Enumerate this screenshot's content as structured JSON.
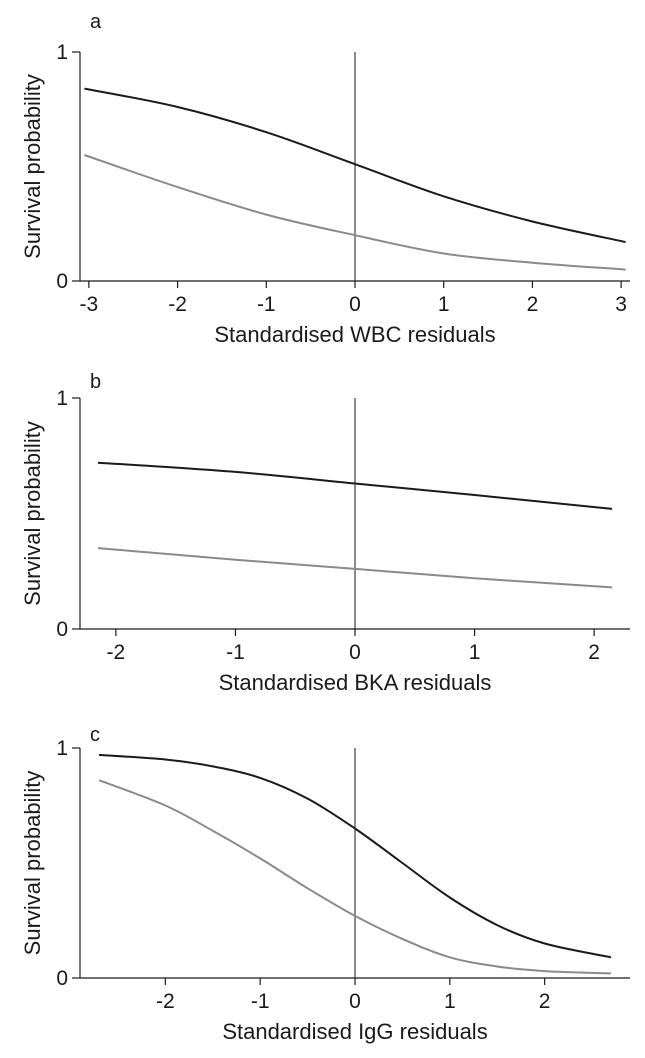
{
  "chart_data": [
    {
      "panel": "a",
      "type": "line",
      "xlabel": "Standardised WBC residuals",
      "ylabel": "Survival probability",
      "xlim": [
        -3.1,
        3.1
      ],
      "ylim": [
        0,
        1
      ],
      "xticks": [
        -3,
        -2,
        -1,
        0,
        1,
        2,
        3
      ],
      "xtick_labels": [
        "-3",
        "-2",
        "-1",
        "0",
        "1",
        "2",
        "3"
      ],
      "yticks": [
        0,
        1
      ],
      "ytick_labels": [
        "0",
        "1"
      ],
      "reference_line_x": 0,
      "grid": false,
      "series": [
        {
          "color": "#1a1a1a",
          "x": [
            -3.05,
            -2,
            -1,
            0,
            1,
            2,
            3.05
          ],
          "y": [
            0.84,
            0.76,
            0.65,
            0.51,
            0.37,
            0.26,
            0.17
          ]
        },
        {
          "color": "#8a8a8a",
          "x": [
            -3.05,
            -2,
            -1,
            0,
            1,
            2,
            3.05
          ],
          "y": [
            0.55,
            0.41,
            0.29,
            0.2,
            0.12,
            0.08,
            0.05
          ]
        }
      ]
    },
    {
      "panel": "b",
      "type": "line",
      "xlabel": "Standardised BKA residuals",
      "ylabel": "Survival probability",
      "xlim": [
        -2.3,
        2.3
      ],
      "ylim": [
        0,
        1
      ],
      "xticks": [
        -2,
        -1,
        0,
        1,
        2
      ],
      "xtick_labels": [
        "-2",
        "-1",
        "0",
        "1",
        "2"
      ],
      "yticks": [
        0,
        1
      ],
      "ytick_labels": [
        "0",
        "1"
      ],
      "reference_line_x": 0,
      "grid": false,
      "series": [
        {
          "color": "#1a1a1a",
          "x": [
            -2.15,
            -1,
            0,
            1,
            2.15
          ],
          "y": [
            0.72,
            0.68,
            0.63,
            0.58,
            0.52
          ]
        },
        {
          "color": "#8a8a8a",
          "x": [
            -2.15,
            -1,
            0,
            1,
            2.15
          ],
          "y": [
            0.35,
            0.3,
            0.26,
            0.22,
            0.18
          ]
        }
      ]
    },
    {
      "panel": "c",
      "type": "line",
      "xlabel": "Standardised IgG residuals",
      "ylabel": "Survival probability",
      "xlim": [
        -2.9,
        2.9
      ],
      "ylim": [
        0,
        1
      ],
      "xticks": [
        -2,
        -1,
        0,
        1,
        2
      ],
      "xtick_labels": [
        "-2",
        "-1",
        "0",
        "1",
        "2"
      ],
      "yticks": [
        0,
        1
      ],
      "ytick_labels": [
        "0",
        "1"
      ],
      "reference_line_x": 0,
      "grid": false,
      "series": [
        {
          "color": "#1a1a1a",
          "x": [
            -2.7,
            -2,
            -1.5,
            -1,
            -0.5,
            0,
            0.5,
            1,
            1.5,
            2,
            2.7
          ],
          "y": [
            0.97,
            0.95,
            0.92,
            0.87,
            0.78,
            0.65,
            0.5,
            0.35,
            0.23,
            0.15,
            0.09
          ]
        },
        {
          "color": "#8a8a8a",
          "x": [
            -2.7,
            -2,
            -1.5,
            -1,
            -0.5,
            0,
            0.5,
            1,
            1.5,
            2,
            2.7
          ],
          "y": [
            0.86,
            0.75,
            0.64,
            0.52,
            0.39,
            0.27,
            0.17,
            0.09,
            0.05,
            0.03,
            0.02
          ]
        }
      ]
    }
  ]
}
